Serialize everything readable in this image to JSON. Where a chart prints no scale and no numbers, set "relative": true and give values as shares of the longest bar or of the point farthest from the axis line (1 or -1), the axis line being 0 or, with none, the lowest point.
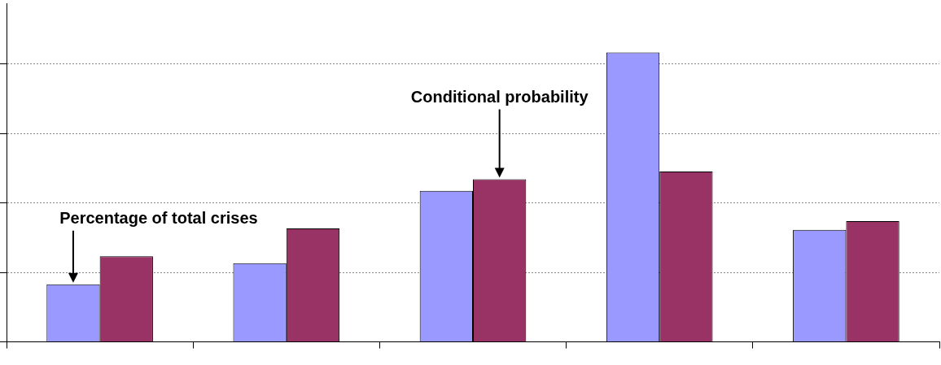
{
  "chart_data": {
    "type": "bar",
    "relative": true,
    "categories": [
      null,
      null,
      null,
      null,
      null
    ],
    "series": [
      {
        "color": "#9999ff",
        "values": [
          0.199,
          0.272,
          0.522,
          1,
          0.387
        ]
      },
      {
        "color": "#993366",
        "values": [
          0.296,
          0.392,
          0.562,
          0.589,
          0.417
        ]
      }
    ],
    "annotations": [
      "Percentage of total crises",
      "Conditional probability"
    ],
    "grid": "y",
    "legend": false
  }
}
